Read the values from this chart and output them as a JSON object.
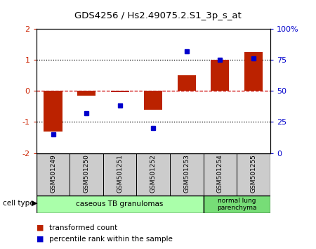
{
  "title": "GDS4256 / Hs2.49075.2.S1_3p_s_at",
  "samples": [
    "GSM501249",
    "GSM501250",
    "GSM501251",
    "GSM501252",
    "GSM501253",
    "GSM501254",
    "GSM501255"
  ],
  "transformed_count": [
    -1.3,
    -0.15,
    -0.05,
    -0.6,
    0.5,
    1.0,
    1.25
  ],
  "percentile_rank": [
    15,
    32,
    38,
    20,
    82,
    75,
    76
  ],
  "ylim_left": [
    -2,
    2
  ],
  "ylim_right": [
    0,
    100
  ],
  "bar_color": "#bb2200",
  "dot_color": "#0000cc",
  "group1_color": "#aaffaa",
  "group2_color": "#77dd77",
  "group1_label": "caseous TB granulomas",
  "group2_label": "normal lung\nparenchyma",
  "group1_samples": 5,
  "group2_samples": 2,
  "legend_items": [
    {
      "color": "#bb2200",
      "label": "transformed count"
    },
    {
      "color": "#0000cc",
      "label": "percentile rank within the sample"
    }
  ],
  "cell_type_label": "cell type",
  "zero_line_color": "#cc0000",
  "dotted_line_color": "#000000",
  "background_color": "#ffffff",
  "tick_label_color_left": "#cc2200",
  "tick_label_color_right": "#0000cc",
  "right_tick_labels": [
    "0",
    "25",
    "50",
    "75",
    "100%"
  ],
  "right_tick_values": [
    0,
    25,
    50,
    75,
    100
  ],
  "left_tick_labels": [
    "-2",
    "-1",
    "0",
    "1",
    "2"
  ],
  "left_tick_values": [
    -2,
    -1,
    0,
    1,
    2
  ]
}
